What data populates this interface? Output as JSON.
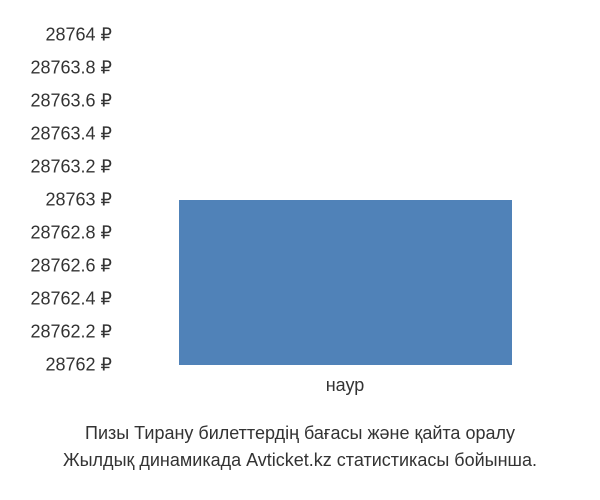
{
  "chart": {
    "type": "bar",
    "y_min": 28762,
    "y_max": 28764,
    "y_ticks": [
      "28764 ₽",
      "28763.8 ₽",
      "28763.6 ₽",
      "28763.4 ₽",
      "28763.2 ₽",
      "28763 ₽",
      "28762.8 ₽",
      "28762.6 ₽",
      "28762.4 ₽",
      "28762.2 ₽",
      "28762 ₽"
    ],
    "y_tick_values": [
      28764,
      28763.8,
      28763.6,
      28763.4,
      28763.2,
      28763,
      28762.8,
      28762.6,
      28762.4,
      28762.2,
      28762
    ],
    "categories": [
      "наур"
    ],
    "values": [
      28763
    ],
    "bar_color": "#5082b8",
    "bar_left_pct": 13,
    "bar_width_pct": 74,
    "background_color": "#ffffff",
    "text_color": "#333333",
    "axis_label_fontsize": 18,
    "caption_fontsize": 18
  },
  "caption": {
    "line1": "Пизы Тирану билеттердің бағасы және қайта оралу",
    "line2": "Жылдық динамикада Avticket.kz статистикасы бойынша."
  }
}
